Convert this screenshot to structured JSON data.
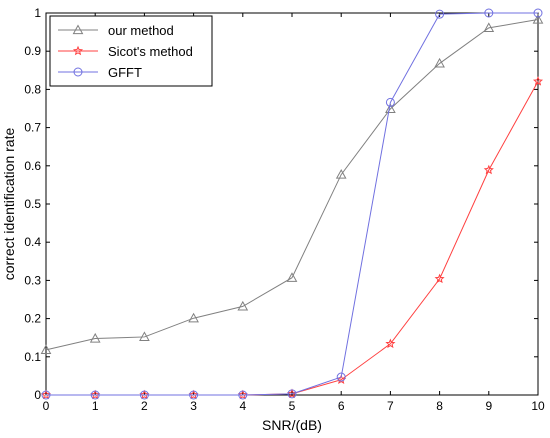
{
  "chart_data": {
    "type": "line",
    "xlabel": "SNR/(dB)",
    "ylabel": "correct identification rate",
    "xlim": [
      0,
      10
    ],
    "ylim": [
      0,
      1
    ],
    "x_ticks": [
      "0",
      "1",
      "2",
      "3",
      "4",
      "5",
      "6",
      "7",
      "8",
      "9",
      "10"
    ],
    "y_ticks": [
      "0",
      "0.1",
      "0.2",
      "0.3",
      "0.4",
      "0.5",
      "0.6",
      "0.7",
      "0.8",
      "0.9",
      "1"
    ],
    "x": [
      0,
      1,
      2,
      3,
      4,
      5,
      6,
      7,
      8,
      9,
      10
    ],
    "grid": false,
    "legend_position": "top-left",
    "series": [
      {
        "name": "our method",
        "color": "#808080",
        "marker": "triangle",
        "values": [
          0.118,
          0.148,
          0.152,
          0.201,
          0.232,
          0.307,
          0.577,
          0.749,
          0.868,
          0.961,
          0.983
        ]
      },
      {
        "name": "Sicot's method",
        "color": "#ff4040",
        "marker": "star",
        "values": [
          0.0,
          0.0,
          0.0,
          0.0,
          0.0,
          0.003,
          0.04,
          0.134,
          0.304,
          0.589,
          0.821
        ]
      },
      {
        "name": "GFFT",
        "color": "#7070e0",
        "marker": "circle",
        "values": [
          0.0,
          0.0,
          0.0,
          0.0,
          0.0,
          0.003,
          0.047,
          0.766,
          0.997,
          1.0,
          1.0
        ]
      }
    ]
  }
}
